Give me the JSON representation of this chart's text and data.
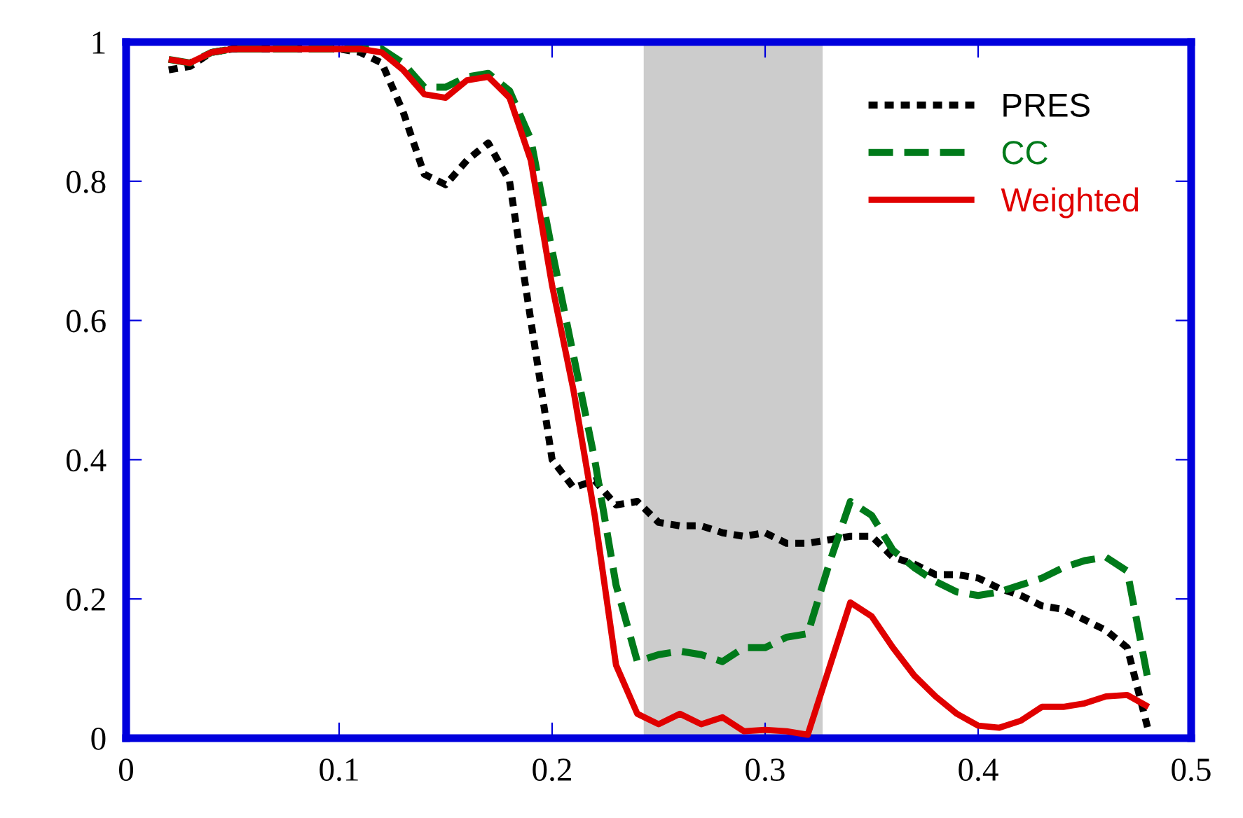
{
  "chart_data": {
    "type": "line",
    "x": [
      0.02,
      0.03,
      0.04,
      0.05,
      0.06,
      0.07,
      0.08,
      0.09,
      0.1,
      0.11,
      0.12,
      0.13,
      0.14,
      0.15,
      0.16,
      0.17,
      0.18,
      0.19,
      0.2,
      0.21,
      0.22,
      0.23,
      0.24,
      0.25,
      0.26,
      0.27,
      0.28,
      0.29,
      0.3,
      0.31,
      0.32,
      0.33,
      0.34,
      0.35,
      0.36,
      0.37,
      0.38,
      0.39,
      0.4,
      0.41,
      0.42,
      0.43,
      0.44,
      0.45,
      0.46,
      0.47,
      0.48
    ],
    "series": [
      {
        "name": "PRES",
        "color": "#000000",
        "line_style": "dotted",
        "values": [
          0.96,
          0.965,
          0.985,
          0.99,
          0.99,
          0.99,
          0.99,
          0.99,
          0.99,
          0.985,
          0.97,
          0.9,
          0.81,
          0.795,
          0.83,
          0.855,
          0.8,
          0.6,
          0.4,
          0.36,
          0.37,
          0.335,
          0.34,
          0.31,
          0.305,
          0.305,
          0.295,
          0.29,
          0.295,
          0.28,
          0.28,
          0.285,
          0.29,
          0.29,
          0.26,
          0.25,
          0.235,
          0.235,
          0.23,
          0.215,
          0.205,
          0.19,
          0.185,
          0.17,
          0.155,
          0.13,
          0.01
        ]
      },
      {
        "name": "CC",
        "color": "#007a1a",
        "line_style": "dashed",
        "values": [
          0.975,
          0.97,
          0.985,
          0.99,
          0.99,
          0.99,
          0.99,
          0.99,
          0.99,
          0.99,
          0.99,
          0.97,
          0.935,
          0.935,
          0.95,
          0.955,
          0.93,
          0.86,
          0.7,
          0.55,
          0.4,
          0.22,
          0.11,
          0.12,
          0.125,
          0.12,
          0.11,
          0.13,
          0.13,
          0.145,
          0.15,
          0.25,
          0.34,
          0.32,
          0.27,
          0.245,
          0.225,
          0.21,
          0.205,
          0.21,
          0.22,
          0.23,
          0.245,
          0.255,
          0.26,
          0.24,
          0.08
        ]
      },
      {
        "name": "Weighted",
        "color": "#e00000",
        "line_style": "solid",
        "values": [
          0.975,
          0.97,
          0.985,
          0.99,
          0.99,
          0.99,
          0.99,
          0.99,
          0.99,
          0.99,
          0.985,
          0.96,
          0.925,
          0.92,
          0.945,
          0.95,
          0.92,
          0.83,
          0.65,
          0.5,
          0.32,
          0.105,
          0.035,
          0.02,
          0.035,
          0.02,
          0.03,
          0.01,
          0.012,
          0.01,
          0.005,
          0.1,
          0.195,
          0.175,
          0.13,
          0.09,
          0.06,
          0.035,
          0.018,
          0.015,
          0.025,
          0.045,
          0.045,
          0.05,
          0.06,
          0.062,
          0.045
        ]
      }
    ],
    "bands": [
      {
        "axis": "x",
        "from": 0.243,
        "to": 0.327,
        "color": "#cccccc"
      }
    ],
    "xlim": [
      0,
      0.5
    ],
    "xticks": [
      0,
      0.1,
      0.2,
      0.3,
      0.4,
      0.5
    ],
    "ylim": [
      0,
      1
    ],
    "yticks": [
      0,
      0.2,
      0.4,
      0.6,
      0.8,
      1
    ],
    "grid": false,
    "legend": "top right",
    "marker": "none"
  }
}
